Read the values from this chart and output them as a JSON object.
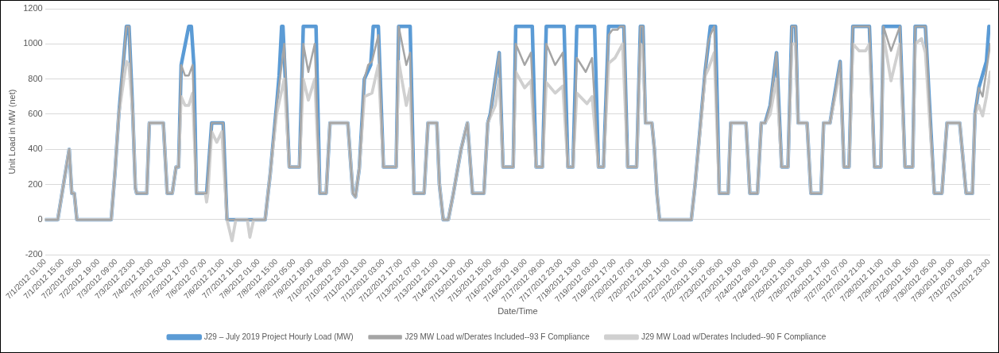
{
  "chart_data": {
    "type": "line",
    "xlabel": "Date/Time",
    "ylabel": "Unit Load in MW (net)",
    "xlim": [
      "2012-07-01T01:00",
      "2012-08-01T00:00"
    ],
    "ylim": [
      -200,
      1200
    ],
    "yticks": [
      -200,
      0,
      200,
      400,
      600,
      800,
      1000,
      1200
    ],
    "grid": "y",
    "legend": "bottom",
    "marker": "none",
    "line_style": "solid",
    "xticks": [
      {
        "value": "2012-07-01T01:00",
        "label": "7/1/2012 01:00"
      },
      {
        "value": "2012-07-01T15:00",
        "label": "7/1/2012 15:00"
      },
      {
        "value": "2012-07-02T05:00",
        "label": "7/2/2012 05:00"
      },
      {
        "value": "2012-07-02T19:00",
        "label": "7/2/2012 19:00"
      },
      {
        "value": "2012-07-03T09:00",
        "label": "7/3/2012 09:00"
      },
      {
        "value": "2012-07-03T23:00",
        "label": "7/3/2012 23:00"
      },
      {
        "value": "2012-07-04T13:00",
        "label": "7/4/2012 13:00"
      },
      {
        "value": "2012-07-05T03:00",
        "label": "7/5/2012 03:00"
      },
      {
        "value": "2012-07-05T17:00",
        "label": "7/5/2012 17:00"
      },
      {
        "value": "2012-07-06T07:00",
        "label": "7/6/2012 07:00"
      },
      {
        "value": "2012-07-06T21:00",
        "label": "7/6/2012 21:00"
      },
      {
        "value": "2012-07-07T11:00",
        "label": "7/7/2012 11:00"
      },
      {
        "value": "2012-07-08T01:00",
        "label": "7/8/2012 01:00"
      },
      {
        "value": "2012-07-08T15:00",
        "label": "7/8/2012 15:00"
      },
      {
        "value": "2012-07-09T05:00",
        "label": "7/9/2012 05:00"
      },
      {
        "value": "2012-07-09T19:00",
        "label": "7/9/2012 19:00"
      },
      {
        "value": "2012-07-10T09:00",
        "label": "7/10/2012 09:00"
      },
      {
        "value": "2012-07-10T23:00",
        "label": "7/10/2012 23:00"
      },
      {
        "value": "2012-07-11T13:00",
        "label": "7/11/2012 13:00"
      },
      {
        "value": "2012-07-12T03:00",
        "label": "7/12/2012 03:00"
      },
      {
        "value": "2012-07-12T17:00",
        "label": "7/12/2012 17:00"
      },
      {
        "value": "2012-07-13T07:00",
        "label": "7/13/2012 07:00"
      },
      {
        "value": "2012-07-13T21:00",
        "label": "7/13/2012 21:00"
      },
      {
        "value": "2012-07-14T11:00",
        "label": "7/14/2012 11:00"
      },
      {
        "value": "2012-07-15T01:00",
        "label": "7/15/2012 01:00"
      },
      {
        "value": "2012-07-15T15:00",
        "label": "7/15/2012 15:00"
      },
      {
        "value": "2012-07-16T05:00",
        "label": "7/16/2012 05:00"
      },
      {
        "value": "2012-07-16T19:00",
        "label": "7/16/2012 19:00"
      },
      {
        "value": "2012-07-17T09:00",
        "label": "7/17/2012 09:00"
      },
      {
        "value": "2012-07-17T23:00",
        "label": "7/17/2012 23:00"
      },
      {
        "value": "2012-07-18T13:00",
        "label": "7/18/2012 13:00"
      },
      {
        "value": "2012-07-19T03:00",
        "label": "7/19/2012 03:00"
      },
      {
        "value": "2012-07-19T17:00",
        "label": "7/19/2012 17:00"
      },
      {
        "value": "2012-07-20T07:00",
        "label": "7/20/2012 07:00"
      },
      {
        "value": "2012-07-20T21:00",
        "label": "7/20/2012 21:00"
      },
      {
        "value": "2012-07-21T11:00",
        "label": "7/21/2012 11:00"
      },
      {
        "value": "2012-07-22T01:00",
        "label": "7/22/2012 01:00"
      },
      {
        "value": "2012-07-22T15:00",
        "label": "7/22/2012 15:00"
      },
      {
        "value": "2012-07-23T05:00",
        "label": "7/23/2012 05:00"
      },
      {
        "value": "2012-07-23T19:00",
        "label": "7/23/2012 19:00"
      },
      {
        "value": "2012-07-24T09:00",
        "label": "7/24/2012 09:00"
      },
      {
        "value": "2012-07-24T23:00",
        "label": "7/24/2012 23:00"
      },
      {
        "value": "2012-07-25T13:00",
        "label": "7/25/2012 13:00"
      },
      {
        "value": "2012-07-26T03:00",
        "label": "7/26/2012 03:00"
      },
      {
        "value": "2012-07-26T17:00",
        "label": "7/26/2012 17:00"
      },
      {
        "value": "2012-07-27T07:00",
        "label": "7/27/2012 07:00"
      },
      {
        "value": "2012-07-27T21:00",
        "label": "7/27/2012 21:00"
      },
      {
        "value": "2012-07-28T11:00",
        "label": "7/28/2012 11:00"
      },
      {
        "value": "2012-07-29T01:00",
        "label": "7/29/2012 01:00"
      },
      {
        "value": "2012-07-29T15:00",
        "label": "7/29/2012 15:00"
      },
      {
        "value": "2012-07-30T05:00",
        "label": "7/30/2012 05:00"
      },
      {
        "value": "2012-07-30T19:00",
        "label": "7/30/2012 19:00"
      },
      {
        "value": "2012-07-31T09:00",
        "label": "7/31/2012 09:00"
      },
      {
        "value": "2012-07-31T23:00",
        "label": "7/31/2012 23:00"
      }
    ],
    "series": [
      {
        "name": "J29 – July 2019 Project Hourly Load (MW)",
        "color": "#5b9bd5",
        "x": [
          "2012-07-01T01:00",
          "2012-07-01T11:00",
          "2012-07-01T20:00",
          "2012-07-01T22:00",
          "2012-07-02T00:00",
          "2012-07-02T02:00",
          "2012-07-03T05:00",
          "2012-07-03T08:00",
          "2012-07-03T11:00",
          "2012-07-03T17:00",
          "2012-07-03T19:00",
          "2012-07-03T22:00",
          "2012-07-04T00:00",
          "2012-07-04T01:00",
          "2012-07-04T09:00",
          "2012-07-04T11:00",
          "2012-07-04T22:00",
          "2012-07-05T01:00",
          "2012-07-05T05:00",
          "2012-07-05T08:00",
          "2012-07-05T10:00",
          "2012-07-05T12:00",
          "2012-07-05T18:00",
          "2012-07-05T20:00",
          "2012-07-05T22:00",
          "2012-07-06T00:00",
          "2012-07-06T08:00",
          "2012-07-06T12:00",
          "2012-07-06T21:00",
          "2012-07-07T00:00",
          "2012-07-08T06:00",
          "2012-07-08T10:00",
          "2012-07-08T15:00",
          "2012-07-08T17:00",
          "2012-07-08T19:00",
          "2012-07-08T20:00",
          "2012-07-09T01:00",
          "2012-07-09T09:00",
          "2012-07-09T12:00",
          "2012-07-09T22:00",
          "2012-07-10T01:00",
          "2012-07-10T06:00",
          "2012-07-10T09:00",
          "2012-07-10T23:00",
          "2012-07-11T03:00",
          "2012-07-11T05:00",
          "2012-07-11T08:00",
          "2012-07-11T12:00",
          "2012-07-11T17:00",
          "2012-07-11T19:00",
          "2012-07-11T23:00",
          "2012-07-12T03:00",
          "2012-07-12T13:00",
          "2012-07-12T15:00",
          "2012-07-13T00:00",
          "2012-07-13T03:00",
          "2012-07-13T11:00",
          "2012-07-13T14:00",
          "2012-07-13T21:00",
          "2012-07-13T23:00",
          "2012-07-14T02:00",
          "2012-07-14T06:00",
          "2012-07-14T10:00",
          "2012-07-14T16:00",
          "2012-07-14T21:00",
          "2012-07-15T01:00",
          "2012-07-15T10:00",
          "2012-07-15T13:00",
          "2012-07-15T15:00",
          "2012-07-15T22:00",
          "2012-07-16T01:00",
          "2012-07-16T09:00",
          "2012-07-16T11:00",
          "2012-07-17T00:00",
          "2012-07-17T03:00",
          "2012-07-17T08:00",
          "2012-07-17T11:00",
          "2012-07-18T01:00",
          "2012-07-18T04:00",
          "2012-07-18T08:00",
          "2012-07-18T11:00",
          "2012-07-19T01:00",
          "2012-07-19T04:00",
          "2012-07-19T08:00",
          "2012-07-19T12:00",
          "2012-07-20T00:00",
          "2012-07-20T03:00",
          "2012-07-20T10:00",
          "2012-07-20T13:00",
          "2012-07-20T15:00",
          "2012-07-20T17:00",
          "2012-07-20T22:00",
          "2012-07-21T00:00",
          "2012-07-21T02:00",
          "2012-07-21T04:00",
          "2012-07-22T05:00",
          "2012-07-22T08:00",
          "2012-07-22T16:00",
          "2012-07-22T20:00",
          "2012-07-23T00:00",
          "2012-07-23T03:00",
          "2012-07-23T10:00",
          "2012-07-23T12:00",
          "2012-07-24T00:00",
          "2012-07-24T03:00",
          "2012-07-24T09:00",
          "2012-07-24T12:00",
          "2012-07-24T15:00",
          "2012-07-24T19:00",
          "2012-07-25T00:00",
          "2012-07-25T04:00",
          "2012-07-25T09:00",
          "2012-07-25T12:00",
          "2012-07-25T15:00",
          "2012-07-25T17:00",
          "2012-07-26T00:00",
          "2012-07-26T03:00",
          "2012-07-26T11:00",
          "2012-07-26T13:00",
          "2012-07-26T18:00",
          "2012-07-27T02:00",
          "2012-07-27T05:00",
          "2012-07-27T09:00",
          "2012-07-27T12:00",
          "2012-07-28T01:00",
          "2012-07-28T05:00",
          "2012-07-28T10:00",
          "2012-07-28T12:00",
          "2012-07-29T01:00",
          "2012-07-29T05:00",
          "2012-07-29T11:00",
          "2012-07-29T13:00",
          "2012-07-29T21:00",
          "2012-07-30T04:00",
          "2012-07-30T10:00",
          "2012-07-30T14:00",
          "2012-07-31T00:00",
          "2012-07-31T05:00",
          "2012-07-31T10:00",
          "2012-07-31T12:00",
          "2012-07-31T15:00",
          "2012-07-31T21:00",
          "2012-07-31T23:00"
        ],
        "values": [
          0,
          0,
          400,
          150,
          150,
          0,
          0,
          270,
          600,
          1100,
          1100,
          600,
          180,
          150,
          150,
          550,
          550,
          150,
          150,
          300,
          300,
          880,
          1100,
          1100,
          880,
          150,
          150,
          550,
          550,
          0,
          0,
          260,
          650,
          820,
          1100,
          1100,
          300,
          300,
          1100,
          1100,
          150,
          150,
          550,
          550,
          150,
          130,
          290,
          800,
          880,
          1100,
          1100,
          300,
          300,
          1100,
          1100,
          150,
          150,
          550,
          550,
          200,
          0,
          0,
          150,
          400,
          550,
          150,
          150,
          550,
          600,
          950,
          300,
          300,
          1100,
          1100,
          300,
          300,
          1100,
          1100,
          300,
          300,
          1100,
          1100,
          300,
          300,
          1100,
          1100,
          300,
          300,
          1100,
          1100,
          550,
          550,
          400,
          150,
          0,
          0,
          200,
          850,
          1100,
          1100,
          150,
          150,
          550,
          550,
          150,
          150,
          550,
          550,
          650,
          950,
          300,
          300,
          1100,
          1100,
          550,
          550,
          150,
          150,
          550,
          550,
          900,
          300,
          300,
          1100,
          1100,
          300,
          300,
          1100,
          1100,
          300,
          300,
          1100,
          1100,
          150,
          150,
          550,
          550,
          150,
          150,
          600,
          750,
          900,
          1100
        ]
      },
      {
        "name": "J29 MW Load w/Derates Included--93 F Compliance",
        "color": "#a5a5a5",
        "x": [
          "2012-07-01T01:00",
          "2012-07-01T11:00",
          "2012-07-01T20:00",
          "2012-07-01T22:00",
          "2012-07-02T00:00",
          "2012-07-02T02:00",
          "2012-07-03T05:00",
          "2012-07-03T08:00",
          "2012-07-03T11:00",
          "2012-07-03T17:00",
          "2012-07-03T19:00",
          "2012-07-03T22:00",
          "2012-07-04T00:00",
          "2012-07-04T01:00",
          "2012-07-04T09:00",
          "2012-07-04T11:00",
          "2012-07-04T22:00",
          "2012-07-05T01:00",
          "2012-07-05T05:00",
          "2012-07-05T08:00",
          "2012-07-05T10:00",
          "2012-07-05T12:00",
          "2012-07-05T15:00",
          "2012-07-05T18:00",
          "2012-07-05T21:00",
          "2012-07-06T00:00",
          "2012-07-06T08:00",
          "2012-07-06T12:00",
          "2012-07-06T21:00",
          "2012-07-07T00:00",
          "2012-07-08T06:00",
          "2012-07-08T10:00",
          "2012-07-08T15:00",
          "2012-07-08T19:00",
          "2012-07-08T21:00",
          "2012-07-09T01:00",
          "2012-07-09T09:00",
          "2012-07-09T12:00",
          "2012-07-09T16:00",
          "2012-07-09T21:00",
          "2012-07-10T01:00",
          "2012-07-10T06:00",
          "2012-07-10T09:00",
          "2012-07-10T23:00",
          "2012-07-11T03:00",
          "2012-07-11T05:00",
          "2012-07-11T08:00",
          "2012-07-11T12:00",
          "2012-07-11T15:00",
          "2012-07-11T18:00",
          "2012-07-11T23:00",
          "2012-07-12T03:00",
          "2012-07-12T13:00",
          "2012-07-12T15:00",
          "2012-07-12T21:00",
          "2012-07-13T00:00",
          "2012-07-13T03:00",
          "2012-07-13T11:00",
          "2012-07-13T14:00",
          "2012-07-13T21:00",
          "2012-07-13T23:00",
          "2012-07-14T02:00",
          "2012-07-14T06:00",
          "2012-07-14T10:00",
          "2012-07-14T16:00",
          "2012-07-14T21:00",
          "2012-07-15T01:00",
          "2012-07-15T10:00",
          "2012-07-15T13:00",
          "2012-07-15T15:00",
          "2012-07-15T22:00",
          "2012-07-16T01:00",
          "2012-07-16T09:00",
          "2012-07-16T11:00",
          "2012-07-16T18:00",
          "2012-07-16T23:00",
          "2012-07-17T03:00",
          "2012-07-17T08:00",
          "2012-07-17T11:00",
          "2012-07-17T18:00",
          "2012-07-18T00:00",
          "2012-07-18T04:00",
          "2012-07-18T08:00",
          "2012-07-18T11:00",
          "2012-07-18T18:00",
          "2012-07-18T23:00",
          "2012-07-19T04:00",
          "2012-07-19T08:00",
          "2012-07-19T12:00",
          "2012-07-19T15:00",
          "2012-07-19T19:00",
          "2012-07-19T21:00",
          "2012-07-20T00:00",
          "2012-07-20T03:00",
          "2012-07-20T10:00",
          "2012-07-20T13:00",
          "2012-07-20T15:00",
          "2012-07-20T17:00",
          "2012-07-20T22:00",
          "2012-07-21T00:00",
          "2012-07-21T02:00",
          "2012-07-21T04:00",
          "2012-07-22T05:00",
          "2012-07-22T08:00",
          "2012-07-22T16:00",
          "2012-07-22T18:00",
          "2012-07-22T20:00",
          "2012-07-22T23:00",
          "2012-07-23T03:00",
          "2012-07-23T10:00",
          "2012-07-23T12:00",
          "2012-07-24T00:00",
          "2012-07-24T03:00",
          "2012-07-24T09:00",
          "2012-07-24T12:00",
          "2012-07-24T15:00",
          "2012-07-24T19:00",
          "2012-07-25T00:00",
          "2012-07-25T04:00",
          "2012-07-25T09:00",
          "2012-07-25T12:00",
          "2012-07-25T15:00",
          "2012-07-25T17:00",
          "2012-07-26T00:00",
          "2012-07-26T03:00",
          "2012-07-26T11:00",
          "2012-07-26T13:00",
          "2012-07-26T18:00",
          "2012-07-27T02:00",
          "2012-07-27T05:00",
          "2012-07-27T09:00",
          "2012-07-27T12:00",
          "2012-07-28T01:00",
          "2012-07-28T05:00",
          "2012-07-28T10:00",
          "2012-07-28T12:00",
          "2012-07-28T18:00",
          "2012-07-29T01:00",
          "2012-07-29T05:00",
          "2012-07-29T11:00",
          "2012-07-29T13:00",
          "2012-07-29T21:00",
          "2012-07-30T04:00",
          "2012-07-30T10:00",
          "2012-07-30T14:00",
          "2012-07-31T00:00",
          "2012-07-31T05:00",
          "2012-07-31T10:00",
          "2012-07-31T12:00",
          "2012-07-31T15:00",
          "2012-07-31T18:00",
          "2012-07-31T21:00",
          "2012-08-01T00:00"
        ],
        "values": [
          0,
          0,
          400,
          150,
          150,
          0,
          0,
          270,
          600,
          1100,
          1100,
          600,
          180,
          150,
          150,
          550,
          550,
          150,
          150,
          300,
          300,
          880,
          820,
          820,
          880,
          150,
          150,
          550,
          550,
          0,
          0,
          260,
          650,
          880,
          1000,
          300,
          300,
          1000,
          840,
          1000,
          150,
          150,
          550,
          550,
          150,
          130,
          290,
          800,
          880,
          900,
          1050,
          300,
          300,
          1100,
          880,
          950,
          150,
          150,
          550,
          550,
          200,
          0,
          0,
          150,
          400,
          550,
          150,
          150,
          550,
          600,
          950,
          300,
          300,
          1000,
          880,
          950,
          300,
          300,
          1000,
          880,
          950,
          300,
          300,
          920,
          840,
          920,
          300,
          300,
          1050,
          1080,
          1080,
          1100,
          1100,
          300,
          300,
          1100,
          1100,
          550,
          550,
          400,
          150,
          0,
          0,
          200,
          850,
          1000,
          1050,
          1100,
          150,
          150,
          550,
          550,
          150,
          150,
          550,
          550,
          650,
          950,
          300,
          300,
          1100,
          1100,
          550,
          550,
          150,
          150,
          550,
          550,
          900,
          300,
          300,
          1100,
          1100,
          300,
          300,
          1100,
          960,
          1100,
          300,
          300,
          1100,
          1100,
          150,
          150,
          550,
          550,
          150,
          150,
          600,
          750,
          700,
          850,
          1000
        ]
      },
      {
        "name": "J29 MW Load w/Derates Included--90 F Compliance",
        "color": "#d0d0d0",
        "x": [
          "2012-07-01T01:00",
          "2012-07-01T11:00",
          "2012-07-01T20:00",
          "2012-07-01T22:00",
          "2012-07-02T00:00",
          "2012-07-02T02:00",
          "2012-07-03T05:00",
          "2012-07-03T08:00",
          "2012-07-03T11:00",
          "2012-07-03T17:00",
          "2012-07-03T19:00",
          "2012-07-03T22:00",
          "2012-07-04T00:00",
          "2012-07-04T01:00",
          "2012-07-04T09:00",
          "2012-07-04T11:00",
          "2012-07-04T22:00",
          "2012-07-05T01:00",
          "2012-07-05T05:00",
          "2012-07-05T08:00",
          "2012-07-05T10:00",
          "2012-07-05T12:00",
          "2012-07-05T15:00",
          "2012-07-05T18:00",
          "2012-07-05T21:00",
          "2012-07-06T00:00",
          "2012-07-06T07:00",
          "2012-07-06T08:00",
          "2012-07-06T09:00",
          "2012-07-06T12:00",
          "2012-07-06T16:00",
          "2012-07-06T20:00",
          "2012-07-07T00:00",
          "2012-07-07T04:00",
          "2012-07-07T07:00",
          "2012-07-07T16:00",
          "2012-07-07T18:00",
          "2012-07-07T21:00",
          "2012-07-08T06:00",
          "2012-07-08T10:00",
          "2012-07-08T15:00",
          "2012-07-08T21:00",
          "2012-07-09T01:00",
          "2012-07-09T09:00",
          "2012-07-09T12:00",
          "2012-07-09T16:00",
          "2012-07-09T21:00",
          "2012-07-10T01:00",
          "2012-07-10T06:00",
          "2012-07-10T09:00",
          "2012-07-10T23:00",
          "2012-07-11T03:00",
          "2012-07-11T05:00",
          "2012-07-11T08:00",
          "2012-07-11T12:00",
          "2012-07-11T18:00",
          "2012-07-11T23:00",
          "2012-07-12T03:00",
          "2012-07-12T13:00",
          "2012-07-12T15:00",
          "2012-07-12T21:00",
          "2012-07-13T00:00",
          "2012-07-13T03:00",
          "2012-07-13T11:00",
          "2012-07-13T14:00",
          "2012-07-13T21:00",
          "2012-07-13T23:00",
          "2012-07-14T02:00",
          "2012-07-14T06:00",
          "2012-07-14T10:00",
          "2012-07-14T16:00",
          "2012-07-14T21:00",
          "2012-07-15T01:00",
          "2012-07-15T10:00",
          "2012-07-15T13:00",
          "2012-07-15T19:00",
          "2012-07-15T22:00",
          "2012-07-16T01:00",
          "2012-07-16T09:00",
          "2012-07-16T11:00",
          "2012-07-16T18:00",
          "2012-07-16T23:00",
          "2012-07-17T03:00",
          "2012-07-17T08:00",
          "2012-07-17T11:00",
          "2012-07-17T18:00",
          "2012-07-18T00:00",
          "2012-07-18T04:00",
          "2012-07-18T08:00",
          "2012-07-18T11:00",
          "2012-07-18T19:00",
          "2012-07-18T23:00",
          "2012-07-19T04:00",
          "2012-07-19T08:00",
          "2012-07-19T12:00",
          "2012-07-19T17:00",
          "2012-07-19T23:00",
          "2012-07-20T03:00",
          "2012-07-20T10:00",
          "2012-07-20T13:00",
          "2012-07-20T15:00",
          "2012-07-20T17:00",
          "2012-07-20T22:00",
          "2012-07-21T00:00",
          "2012-07-21T02:00",
          "2012-07-21T04:00",
          "2012-07-22T05:00",
          "2012-07-22T08:00",
          "2012-07-22T16:00",
          "2012-07-22T18:00",
          "2012-07-22T23:00",
          "2012-07-23T03:00",
          "2012-07-23T10:00",
          "2012-07-23T12:00",
          "2012-07-24T00:00",
          "2012-07-24T03:00",
          "2012-07-24T09:00",
          "2012-07-24T12:00",
          "2012-07-24T15:00",
          "2012-07-24T19:00",
          "2012-07-25T00:00",
          "2012-07-25T04:00",
          "2012-07-25T09:00",
          "2012-07-25T12:00",
          "2012-07-25T15:00",
          "2012-07-25T17:00",
          "2012-07-26T00:00",
          "2012-07-26T03:00",
          "2012-07-26T11:00",
          "2012-07-26T13:00",
          "2012-07-26T18:00",
          "2012-07-27T02:00",
          "2012-07-27T05:00",
          "2012-07-27T09:00",
          "2012-07-27T12:00",
          "2012-07-27T17:00",
          "2012-07-27T22:00",
          "2012-07-28T01:00",
          "2012-07-28T05:00",
          "2012-07-28T10:00",
          "2012-07-28T12:00",
          "2012-07-28T18:00",
          "2012-07-29T01:00",
          "2012-07-29T05:00",
          "2012-07-29T11:00",
          "2012-07-29T13:00",
          "2012-07-29T18:00",
          "2012-07-29T21:00",
          "2012-07-30T04:00",
          "2012-07-30T10:00",
          "2012-07-30T14:00",
          "2012-07-31T00:00",
          "2012-07-31T05:00",
          "2012-07-31T10:00",
          "2012-07-31T12:00",
          "2012-07-31T15:00",
          "2012-07-31T18:00",
          "2012-07-31T21:00",
          "2012-08-01T00:00"
        ],
        "values": [
          0,
          0,
          400,
          150,
          150,
          0,
          0,
          270,
          600,
          900,
          880,
          600,
          180,
          150,
          150,
          550,
          550,
          150,
          150,
          300,
          300,
          700,
          650,
          650,
          720,
          150,
          150,
          100,
          150,
          500,
          440,
          500,
          0,
          -120,
          0,
          0,
          -100,
          0,
          0,
          260,
          600,
          800,
          300,
          300,
          800,
          680,
          800,
          150,
          150,
          550,
          550,
          150,
          130,
          290,
          700,
          720,
          880,
          300,
          300,
          900,
          650,
          750,
          150,
          150,
          550,
          550,
          200,
          0,
          0,
          150,
          400,
          550,
          150,
          150,
          550,
          650,
          800,
          300,
          300,
          840,
          750,
          790,
          300,
          300,
          780,
          720,
          760,
          300,
          300,
          720,
          660,
          700,
          300,
          300,
          890,
          920,
          1000,
          300,
          300,
          1000,
          980,
          550,
          550,
          400,
          150,
          0,
          0,
          200,
          820,
          850,
          950,
          150,
          150,
          550,
          550,
          150,
          150,
          550,
          550,
          600,
          800,
          300,
          300,
          1000,
          1000,
          550,
          550,
          150,
          150,
          550,
          550,
          850,
          300,
          300,
          1000,
          960,
          960,
          1000,
          300,
          300,
          1050,
          790,
          1000,
          300,
          300,
          1000,
          1030,
          950,
          150,
          150,
          550,
          550,
          150,
          150,
          600,
          650,
          590,
          700,
          840
        ]
      }
    ]
  }
}
